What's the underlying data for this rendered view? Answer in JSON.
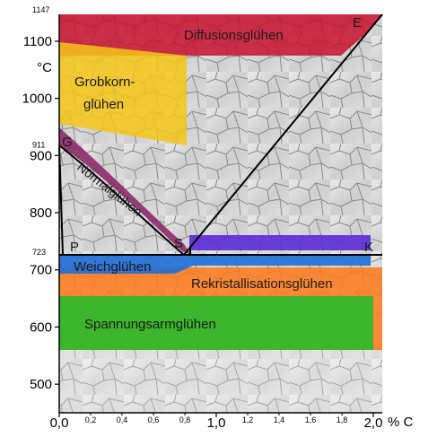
{
  "y_axis": {
    "unit": "°C",
    "ticks": [
      {
        "value": 1100,
        "label": "1100"
      },
      {
        "value": 1000,
        "label": "1000"
      },
      {
        "value": 900,
        "label": "900"
      },
      {
        "value": 800,
        "label": "800"
      },
      {
        "value": 700,
        "label": "700"
      },
      {
        "value": 600,
        "label": "600"
      },
      {
        "value": 500,
        "label": "500"
      }
    ],
    "special_ticks": [
      {
        "value": 1147,
        "label": "1147"
      },
      {
        "value": 911,
        "label": "911"
      },
      {
        "value": 723,
        "label": "723"
      }
    ]
  },
  "x_axis": {
    "unit": "% C",
    "major": [
      {
        "value": 0.0,
        "label": "0,0"
      },
      {
        "value": 1.0,
        "label": "1,0"
      },
      {
        "value": 2.0,
        "label": "2,0"
      }
    ],
    "minor": [
      {
        "value": 0.2,
        "label": "0,2"
      },
      {
        "value": 0.4,
        "label": "0,4"
      },
      {
        "value": 0.6,
        "label": "0,6"
      },
      {
        "value": 0.8,
        "label": "0,8"
      },
      {
        "value": 1.2,
        "label": "1,2"
      },
      {
        "value": 1.4,
        "label": "1,4"
      },
      {
        "value": 1.6,
        "label": "1,6"
      },
      {
        "value": 1.8,
        "label": "1,8"
      }
    ]
  },
  "regions": {
    "diffusion": {
      "label": "Diffusionsglühen",
      "color": "#c8102e"
    },
    "grobkorn": {
      "label_line1": "Grobkorn-",
      "label_line2": "glühen",
      "color": "#f5c518"
    },
    "normal": {
      "label": "Normalglühen",
      "color": "#8b2a6a"
    },
    "weich": {
      "label": "Weichglühen",
      "color": "#1e6fd9"
    },
    "rekristallisation": {
      "label": "Rekristallisationsglühen",
      "color": "#ff7a1a"
    },
    "spannungsarm": {
      "label": "Spannungsarmglühen",
      "color": "#2db82d"
    },
    "hypereutectoid": {
      "color": "#5b2bd6"
    }
  },
  "points": {
    "E": "E",
    "G": "G",
    "S": "S",
    "P": "P",
    "K": "K"
  },
  "colors": {
    "background": "#d9d9d9",
    "grain_line": "#8a8a8a",
    "phase_line": "#000000"
  }
}
